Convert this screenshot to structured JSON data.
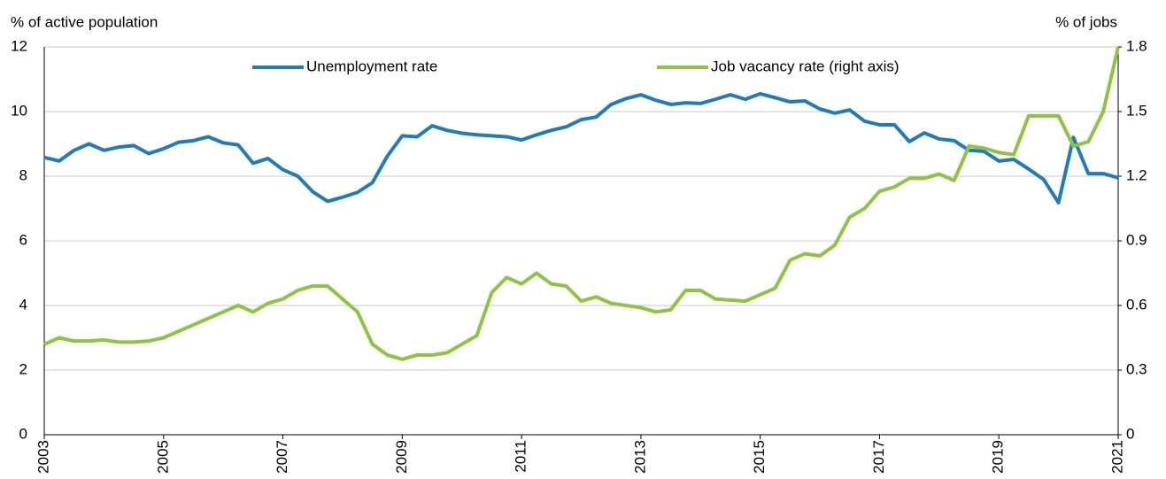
{
  "chart_data": {
    "type": "line",
    "y_label": "% of active population",
    "y2_label": "% of jobs",
    "x": [
      2003,
      2003.25,
      2003.5,
      2003.75,
      2004,
      2004.25,
      2004.5,
      2004.75,
      2005,
      2005.25,
      2005.5,
      2005.75,
      2006,
      2006.25,
      2006.5,
      2006.75,
      2007,
      2007.25,
      2007.5,
      2007.75,
      2008,
      2008.25,
      2008.5,
      2008.75,
      2009,
      2009.25,
      2009.5,
      2009.75,
      2010,
      2010.25,
      2010.5,
      2010.75,
      2011,
      2011.25,
      2011.5,
      2011.75,
      2012,
      2012.25,
      2012.5,
      2012.75,
      2013,
      2013.25,
      2013.5,
      2013.75,
      2014,
      2014.25,
      2014.5,
      2014.75,
      2015,
      2015.25,
      2015.5,
      2015.75,
      2016,
      2016.25,
      2016.5,
      2016.75,
      2017,
      2017.25,
      2017.5,
      2017.75,
      2018,
      2018.25,
      2018.5,
      2018.75,
      2019,
      2019.25,
      2019.5,
      2019.75,
      2020,
      2020.25,
      2020.5,
      2020.75,
      2021
    ],
    "series": [
      {
        "name": "Unemployment rate",
        "color": "#1f7bbf",
        "axis": "y",
        "values": [
          8.58,
          8.47,
          8.8,
          9.0,
          8.8,
          8.9,
          8.95,
          8.7,
          8.85,
          9.05,
          9.1,
          9.22,
          9.03,
          8.97,
          8.4,
          8.55,
          8.2,
          8.0,
          7.52,
          7.22,
          7.35,
          7.5,
          7.8,
          8.62,
          9.25,
          9.22,
          9.56,
          9.42,
          9.33,
          9.28,
          9.25,
          9.22,
          9.12,
          9.28,
          9.42,
          9.53,
          9.75,
          9.83,
          10.22,
          10.4,
          10.52,
          10.35,
          10.22,
          10.27,
          10.25,
          10.38,
          10.52,
          10.38,
          10.55,
          10.43,
          10.3,
          10.33,
          10.08,
          9.95,
          10.05,
          9.7,
          9.59,
          9.59,
          9.07,
          9.34,
          9.15,
          9.1,
          8.8,
          8.77,
          8.47,
          8.52,
          8.22,
          7.9,
          7.18,
          9.2,
          8.08,
          8.08,
          7.95
        ]
      },
      {
        "name": "Job vacancy rate (right axis)",
        "color": "#8cc63f",
        "axis": "y2",
        "values": [
          0.42,
          0.45,
          0.435,
          0.435,
          0.44,
          0.43,
          0.43,
          0.435,
          0.45,
          0.48,
          0.51,
          0.54,
          0.57,
          0.6,
          0.57,
          0.61,
          0.63,
          0.67,
          0.69,
          0.69,
          0.63,
          0.57,
          0.42,
          0.37,
          0.35,
          0.37,
          0.37,
          0.38,
          0.42,
          0.46,
          0.66,
          0.73,
          0.7,
          0.75,
          0.7,
          0.69,
          0.62,
          0.64,
          0.61,
          0.6,
          0.59,
          0.57,
          0.58,
          0.67,
          0.67,
          0.63,
          0.625,
          0.62,
          0.65,
          0.68,
          0.81,
          0.84,
          0.83,
          0.88,
          1.01,
          1.05,
          1.13,
          1.15,
          1.19,
          1.19,
          1.21,
          1.18,
          1.34,
          1.33,
          1.31,
          1.3,
          1.48,
          1.48,
          1.48,
          1.34,
          1.36,
          1.5,
          1.8
        ]
      }
    ],
    "xlim": [
      2003,
      2021
    ],
    "xticks": [
      2003,
      2005,
      2007,
      2009,
      2011,
      2013,
      2015,
      2017,
      2019,
      2021
    ],
    "ylim": [
      0,
      12
    ],
    "yticks": [
      0,
      2,
      4,
      6,
      8,
      10,
      12
    ],
    "y2lim": [
      0,
      1.8
    ],
    "y2ticks": [
      0,
      0.3,
      0.6,
      0.9,
      1.2,
      1.5,
      1.8
    ],
    "grid": true,
    "legend": "top"
  }
}
